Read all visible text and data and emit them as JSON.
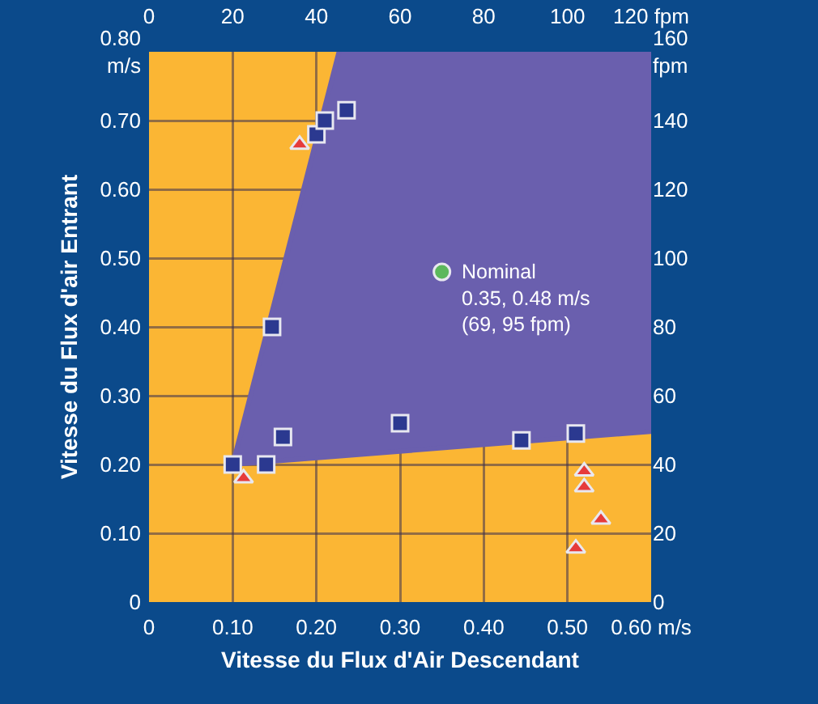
{
  "chart_data": {
    "type": "scatter",
    "xlabel": "Vitesse du Flux d'Air Descendant",
    "ylabel": "Vitesse du Flux d'air Entrant",
    "xlim": [
      0,
      0.6
    ],
    "ylim": [
      0,
      0.8
    ],
    "xticks": [
      0,
      {
        "value": 0.1,
        "label": "0.10"
      },
      {
        "value": 0.2,
        "label": "0.20"
      },
      {
        "value": 0.3,
        "label": "0.30"
      },
      {
        "value": 0.4,
        "label": "0.40"
      },
      {
        "value": 0.5,
        "label": "0.50"
      },
      {
        "value": 0.6,
        "label": "0.60 m/s"
      }
    ],
    "yticks": [
      0,
      {
        "value": 0.1,
        "label": "0.10"
      },
      {
        "value": 0.2,
        "label": "0.20"
      },
      {
        "value": 0.3,
        "label": "0.30"
      },
      {
        "value": 0.4,
        "label": "0.40"
      },
      {
        "value": 0.5,
        "label": "0.50"
      },
      {
        "value": 0.6,
        "label": "0.60"
      },
      {
        "value": 0.7,
        "label": "0.70"
      },
      {
        "value": 0.8,
        "label": "0.80\nm/s"
      }
    ],
    "x2lim": [
      0,
      120
    ],
    "x2ticks": [
      0,
      20,
      40,
      60,
      80,
      100,
      {
        "value": 120,
        "label": "120 fpm"
      }
    ],
    "y2lim": [
      0,
      160
    ],
    "y2ticks": [
      0,
      20,
      40,
      60,
      80,
      100,
      120,
      140,
      {
        "value": 160,
        "label": "160\nfpm"
      }
    ],
    "grid": true,
    "bands": [
      {
        "axis": "x",
        "from": 0,
        "to": 0.6,
        "color": "#fbb634"
      }
    ],
    "series": [
      {
        "type": "area",
        "color": "#6a5fae",
        "x": [
          0.227,
          0.1,
          0.6,
          0.6
        ],
        "values": [
          0.8,
          0.2,
          0.248,
          0.8
        ]
      },
      {
        "type": "scatter",
        "marker": "square",
        "color": "#2b3990",
        "x": [
          0.1,
          0.14,
          0.16,
          0.3,
          0.445,
          0.51,
          0.147,
          0.2,
          0.21,
          0.236
        ],
        "values": [
          0.2,
          0.2,
          0.24,
          0.26,
          0.235,
          0.245,
          0.4,
          0.68,
          0.7,
          0.715
        ]
      },
      {
        "type": "scatter",
        "marker": "triangle",
        "color": "#e63b3b",
        "x": [
          0.18,
          0.113,
          0.52,
          0.52,
          0.54,
          0.51
        ],
        "values": [
          0.665,
          0.18,
          0.19,
          0.167,
          0.12,
          0.078
        ]
      },
      {
        "type": "scatter",
        "marker": "circle",
        "color": "#5cb85c",
        "x": [
          0.35
        ],
        "values": [
          0.48
        ]
      }
    ],
    "annotations": [
      {
        "text": "Nominal\n0.35, 0.48 m/s\n(69, 95 fpm)",
        "x": 0.35,
        "y": 0.48
      }
    ]
  }
}
